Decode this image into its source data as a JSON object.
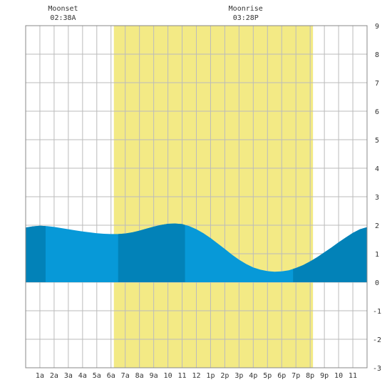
{
  "chart_data": {
    "type": "area",
    "title": "",
    "xlabel": "",
    "ylabel": "",
    "x_range_hours": [
      0,
      24
    ],
    "ylim": [
      -3,
      9
    ],
    "y_ticks": [
      -3,
      -2,
      -1,
      0,
      1,
      2,
      3,
      4,
      5,
      6,
      7,
      8,
      9
    ],
    "x_tick_labels": [
      {
        "hour": 1,
        "label": "1a"
      },
      {
        "hour": 2,
        "label": "2a"
      },
      {
        "hour": 3,
        "label": "3a"
      },
      {
        "hour": 4,
        "label": "4a"
      },
      {
        "hour": 5,
        "label": "5a"
      },
      {
        "hour": 6,
        "label": "6a"
      },
      {
        "hour": 7,
        "label": "7a"
      },
      {
        "hour": 8,
        "label": "8a"
      },
      {
        "hour": 9,
        "label": "9a"
      },
      {
        "hour": 10,
        "label": "10"
      },
      {
        "hour": 11,
        "label": "11"
      },
      {
        "hour": 12,
        "label": "12"
      },
      {
        "hour": 13,
        "label": "1p"
      },
      {
        "hour": 14,
        "label": "2p"
      },
      {
        "hour": 15,
        "label": "3p"
      },
      {
        "hour": 16,
        "label": "4p"
      },
      {
        "hour": 17,
        "label": "5p"
      },
      {
        "hour": 18,
        "label": "6p"
      },
      {
        "hour": 19,
        "label": "7p"
      },
      {
        "hour": 20,
        "label": "8p"
      },
      {
        "hour": 21,
        "label": "9p"
      },
      {
        "hour": 22,
        "label": "10"
      },
      {
        "hour": 23,
        "label": "11"
      }
    ],
    "daylight_hours": [
      6.2,
      20.2
    ],
    "tide_series": {
      "x": [
        0,
        0.5,
        1,
        1.5,
        2,
        2.5,
        3,
        3.5,
        4,
        4.5,
        5,
        5.5,
        6,
        6.5,
        7,
        7.5,
        8,
        8.5,
        9,
        9.5,
        10,
        10.5,
        11,
        11.5,
        12,
        12.5,
        13,
        13.5,
        14,
        14.5,
        15,
        15.5,
        16,
        16.5,
        17,
        17.5,
        18,
        18.5,
        19,
        19.5,
        20,
        20.5,
        21,
        21.5,
        22,
        22.5,
        23,
        23.5,
        24
      ],
      "y": [
        1.92,
        1.96,
        1.98,
        1.97,
        1.94,
        1.9,
        1.86,
        1.82,
        1.78,
        1.75,
        1.72,
        1.7,
        1.69,
        1.69,
        1.71,
        1.75,
        1.81,
        1.88,
        1.95,
        2.01,
        2.05,
        2.06,
        2.04,
        1.97,
        1.86,
        1.72,
        1.55,
        1.36,
        1.17,
        0.97,
        0.79,
        0.64,
        0.52,
        0.44,
        0.39,
        0.37,
        0.38,
        0.42,
        0.5,
        0.6,
        0.73,
        0.88,
        1.05,
        1.22,
        1.4,
        1.57,
        1.73,
        1.86,
        1.93
      ]
    },
    "shade_bands_hours": [
      [
        0,
        1.4
      ],
      [
        6.5,
        11.2
      ],
      [
        18.8,
        24
      ]
    ],
    "moon_events": [
      {
        "label": "Moonset",
        "time": "02:38A",
        "hour": 2.63
      },
      {
        "label": "Moonrise",
        "time": "03:28P",
        "hour": 15.47
      }
    ],
    "colors": {
      "background": "#ffffff",
      "daylight": "#f3ea85",
      "tide_light": "#0799d8",
      "tide_dark": "#0282b8",
      "grid": "#bbbbbb",
      "frame": "#888888",
      "text": "#333333"
    },
    "grid": true,
    "legend": "none"
  }
}
